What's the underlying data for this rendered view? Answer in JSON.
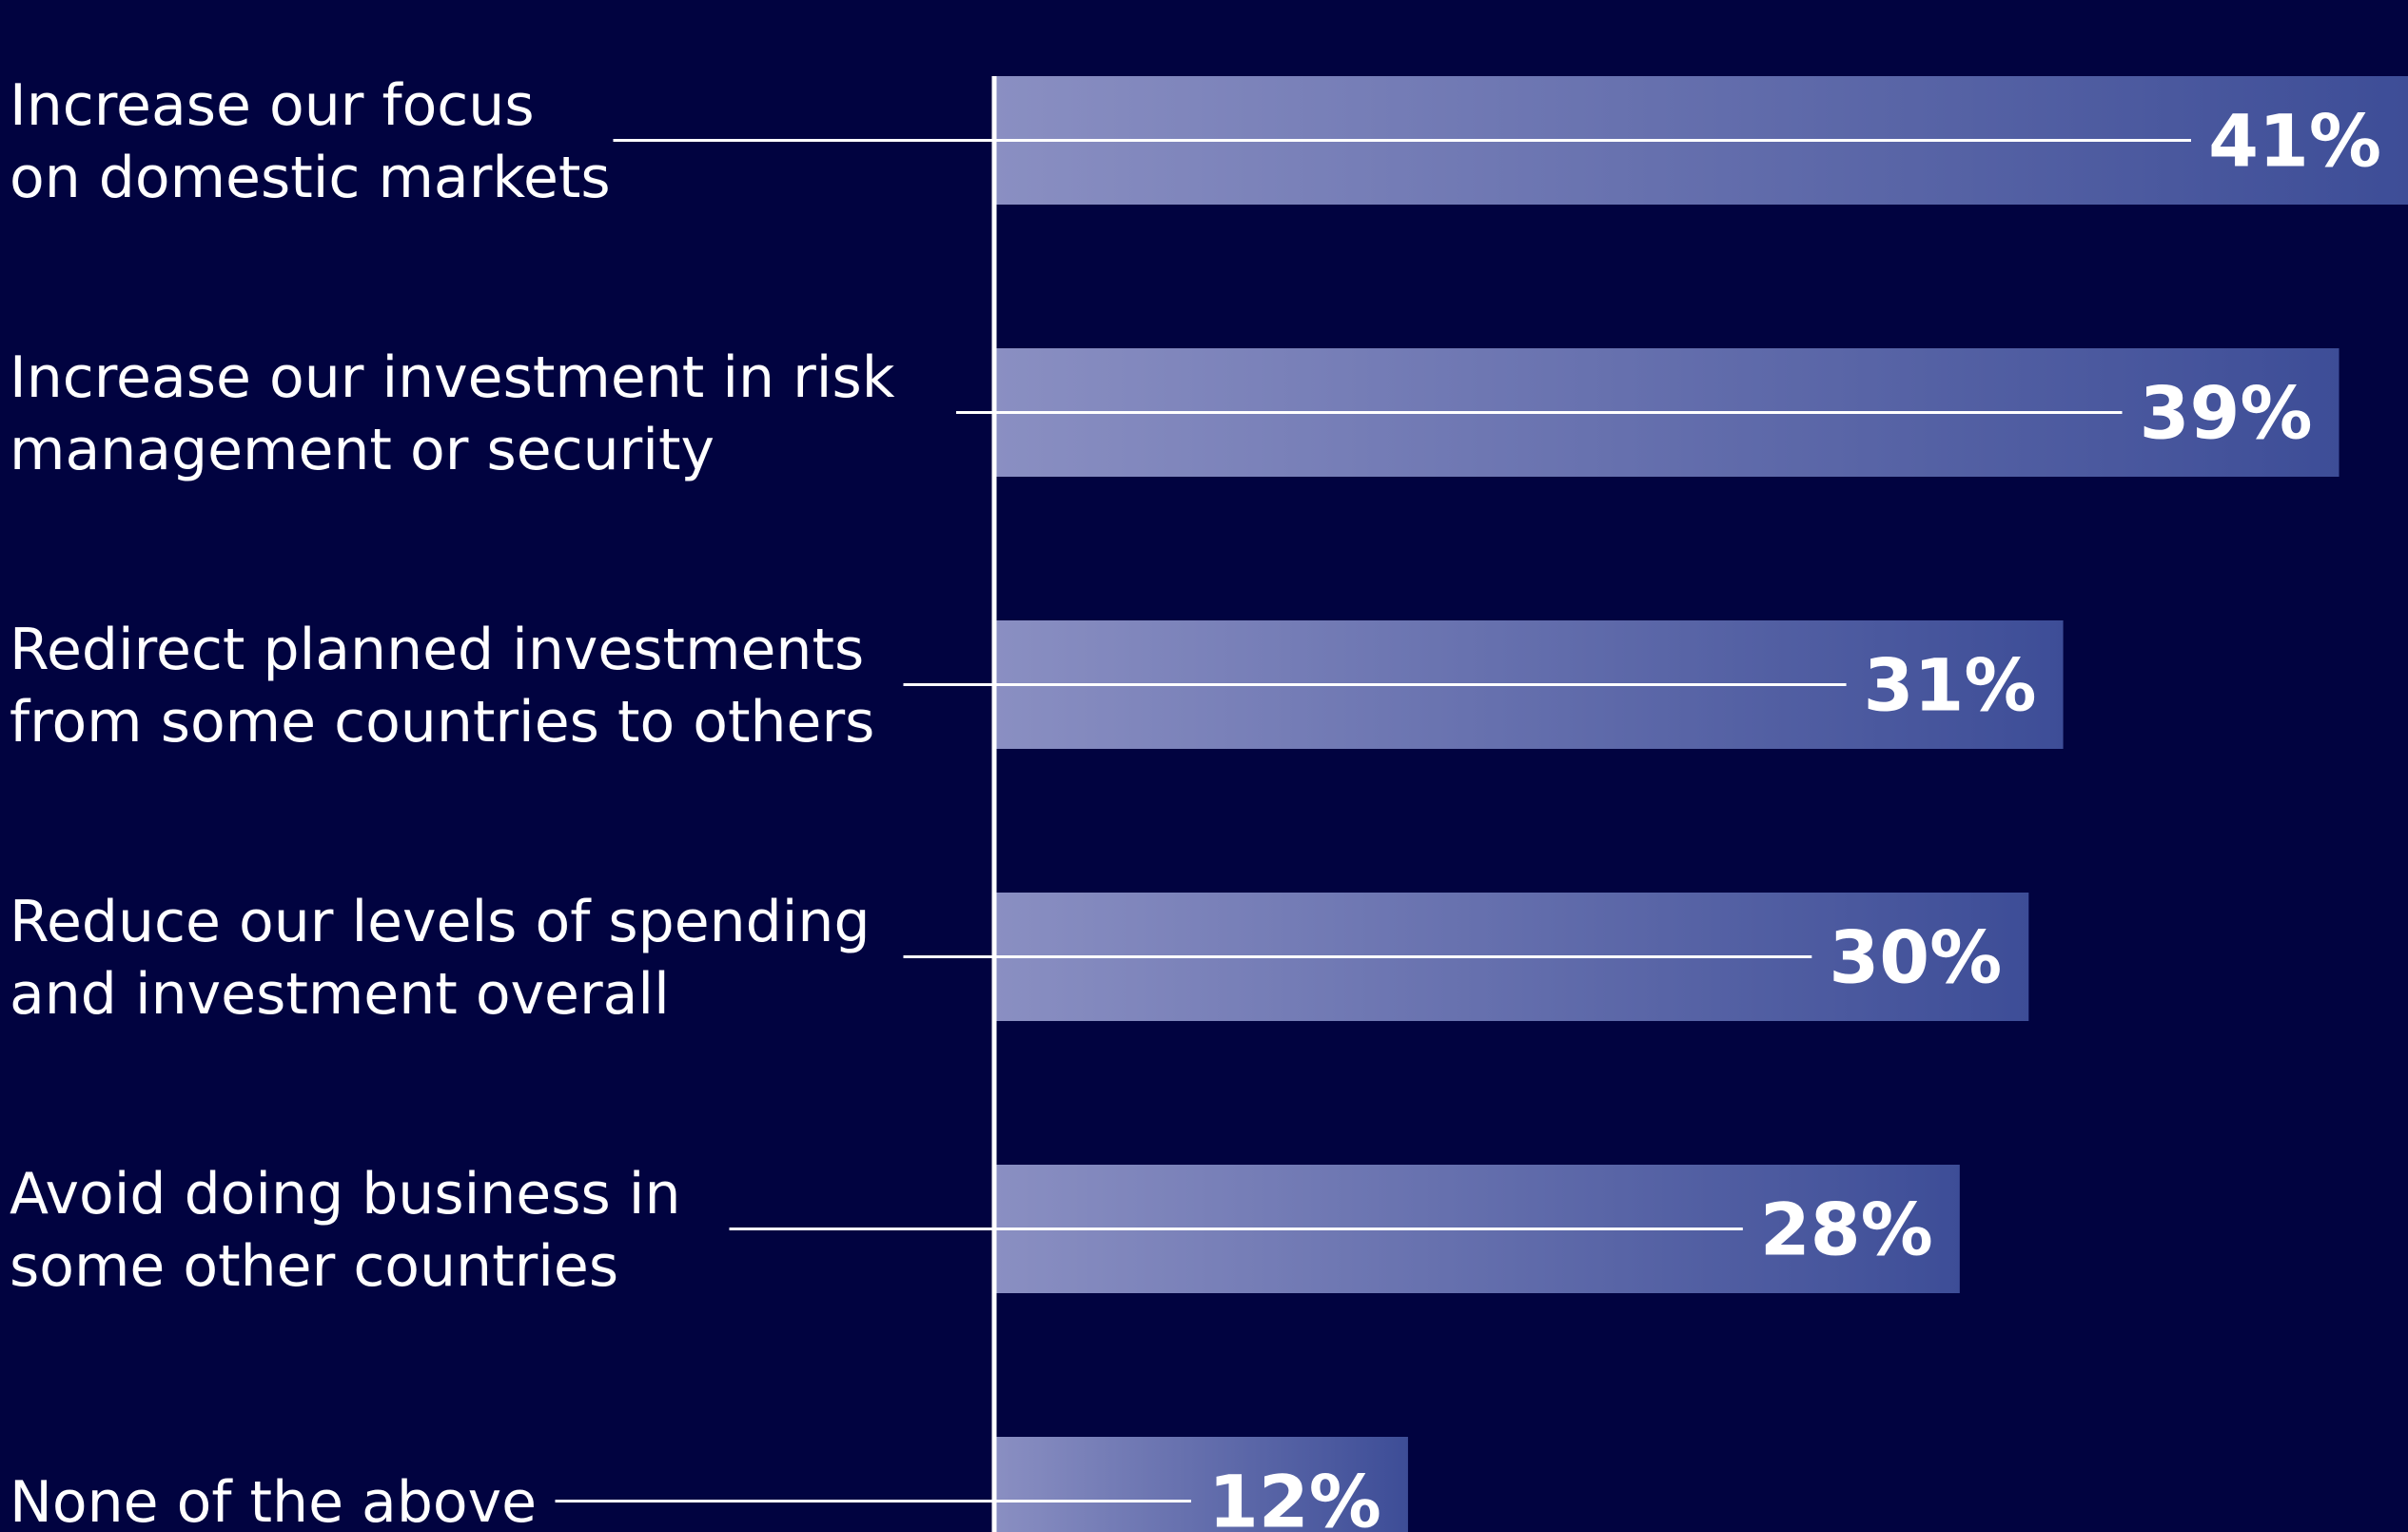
{
  "chart_data": {
    "type": "bar",
    "orientation": "horizontal",
    "categories": [
      [
        "Increase our focus",
        "on domestic markets"
      ],
      [
        "Increase our investment in risk",
        "management or security"
      ],
      [
        "Redirect planned investments",
        "from some countries to others"
      ],
      [
        "Reduce our levels of spending",
        "and investment overall"
      ],
      [
        "Avoid doing business in",
        "some other countries"
      ],
      [
        "None of the above"
      ]
    ],
    "values": [
      41,
      39,
      31,
      30,
      28,
      12
    ],
    "value_labels": [
      "41%",
      "39%",
      "31%",
      "30%",
      "28%",
      "12%"
    ],
    "unit": "%",
    "xlim": [
      0,
      41
    ],
    "grid": false,
    "legend": "none"
  },
  "colors": {
    "background": "#010340",
    "bar_gradient_start": "#8a8fc2",
    "bar_gradient_end": "#3d4d97",
    "axis_line": "#ffffff",
    "text": "#ffffff"
  }
}
